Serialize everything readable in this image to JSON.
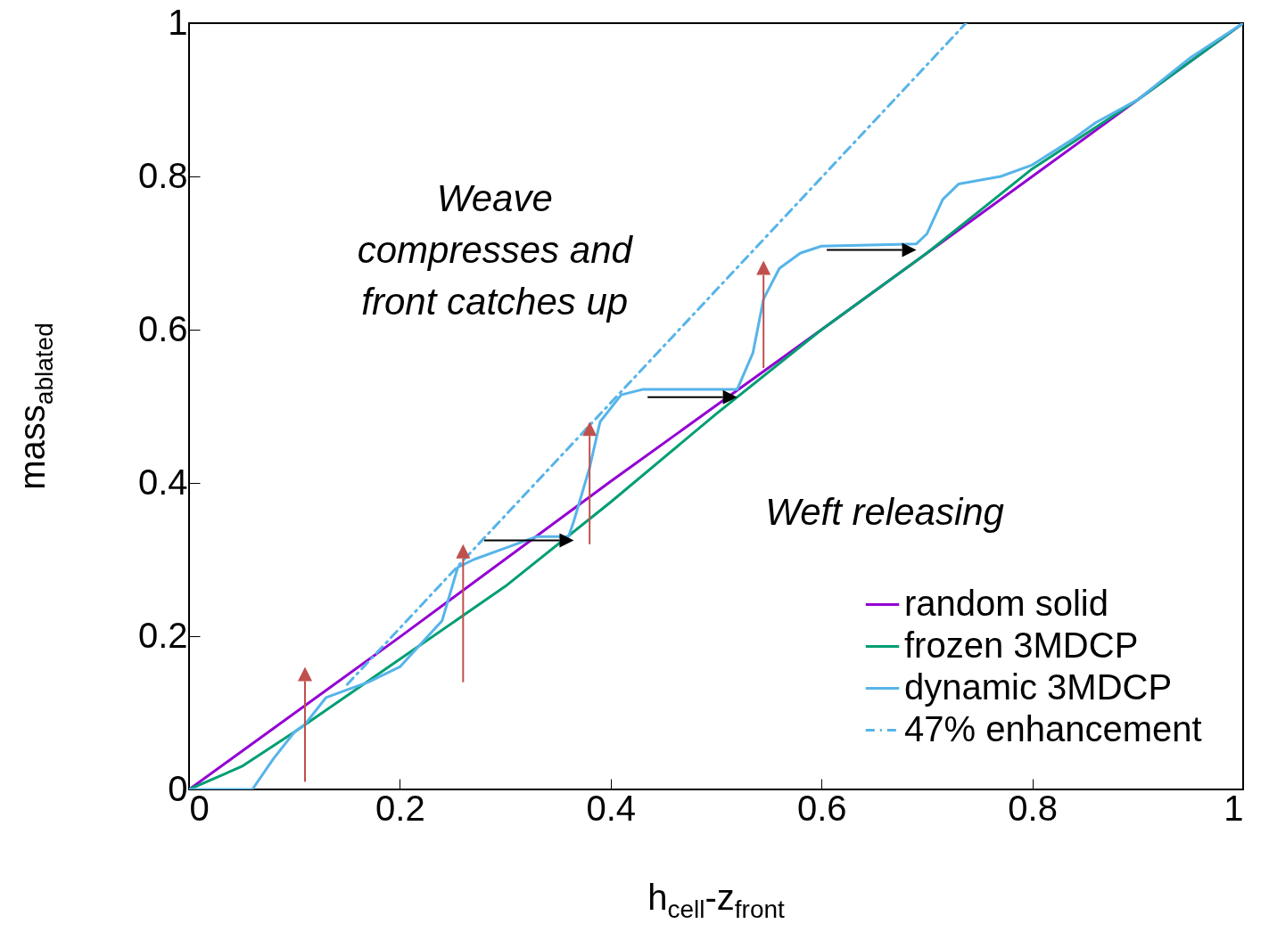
{
  "chart_data": {
    "type": "line",
    "xlabel": "h$_{cell}$-z$_{front}$",
    "ylabel": "mass$_{ablated}$",
    "xlim": [
      0,
      1
    ],
    "ylim": [
      0,
      1
    ],
    "xticks": [
      0,
      0.2,
      0.4,
      0.6,
      0.8,
      1
    ],
    "yticks": [
      0,
      0.2,
      0.4,
      0.6,
      0.8,
      1
    ],
    "grid": false,
    "legend": "bottom right",
    "line_style": "solid",
    "marker": "none",
    "annotations": [
      "Weave\ncompresses and\nfront catches up",
      "Weft releasing"
    ],
    "series": [
      {
        "name": "random solid",
        "color": "#9400d3",
        "x": [
          0,
          0.2,
          0.4,
          0.6,
          0.8,
          1
        ],
        "values": [
          0,
          0.199,
          0.402,
          0.6,
          0.8,
          1
        ]
      },
      {
        "name": "frozen 3MDCP",
        "color": "#009e73",
        "x": [
          0,
          0.05,
          0.1,
          0.2,
          0.3,
          0.4,
          0.5,
          0.6,
          0.7,
          0.8,
          0.9,
          1
        ],
        "values": [
          0,
          0.03,
          0.075,
          0.17,
          0.265,
          0.375,
          0.49,
          0.6,
          0.7,
          0.81,
          0.9,
          1
        ]
      },
      {
        "name": "dynamic 3MDCP",
        "color": "#56b4e9",
        "x": [
          0,
          0.06,
          0.08,
          0.1,
          0.11,
          0.13,
          0.15,
          0.17,
          0.2,
          0.22,
          0.24,
          0.255,
          0.27,
          0.3,
          0.33,
          0.36,
          0.365,
          0.38,
          0.39,
          0.41,
          0.43,
          0.52,
          0.535,
          0.545,
          0.56,
          0.58,
          0.6,
          0.69,
          0.7,
          0.715,
          0.73,
          0.77,
          0.8,
          0.84,
          0.86,
          0.9,
          0.95,
          1
        ],
        "values": [
          0,
          0,
          0.04,
          0.075,
          0.085,
          0.12,
          0.13,
          0.14,
          0.16,
          0.19,
          0.22,
          0.29,
          0.3,
          0.315,
          0.33,
          0.33,
          0.35,
          0.42,
          0.48,
          0.515,
          0.522,
          0.522,
          0.57,
          0.64,
          0.68,
          0.7,
          0.709,
          0.712,
          0.725,
          0.77,
          0.79,
          0.8,
          0.815,
          0.85,
          0.87,
          0.9,
          0.955,
          1
        ]
      },
      {
        "name": "47% enhancement",
        "color": "#56b4e9",
        "line_style": "dashdot",
        "x": [
          0.15,
          0.737
        ],
        "values": [
          0.137,
          1
        ]
      }
    ]
  }
}
